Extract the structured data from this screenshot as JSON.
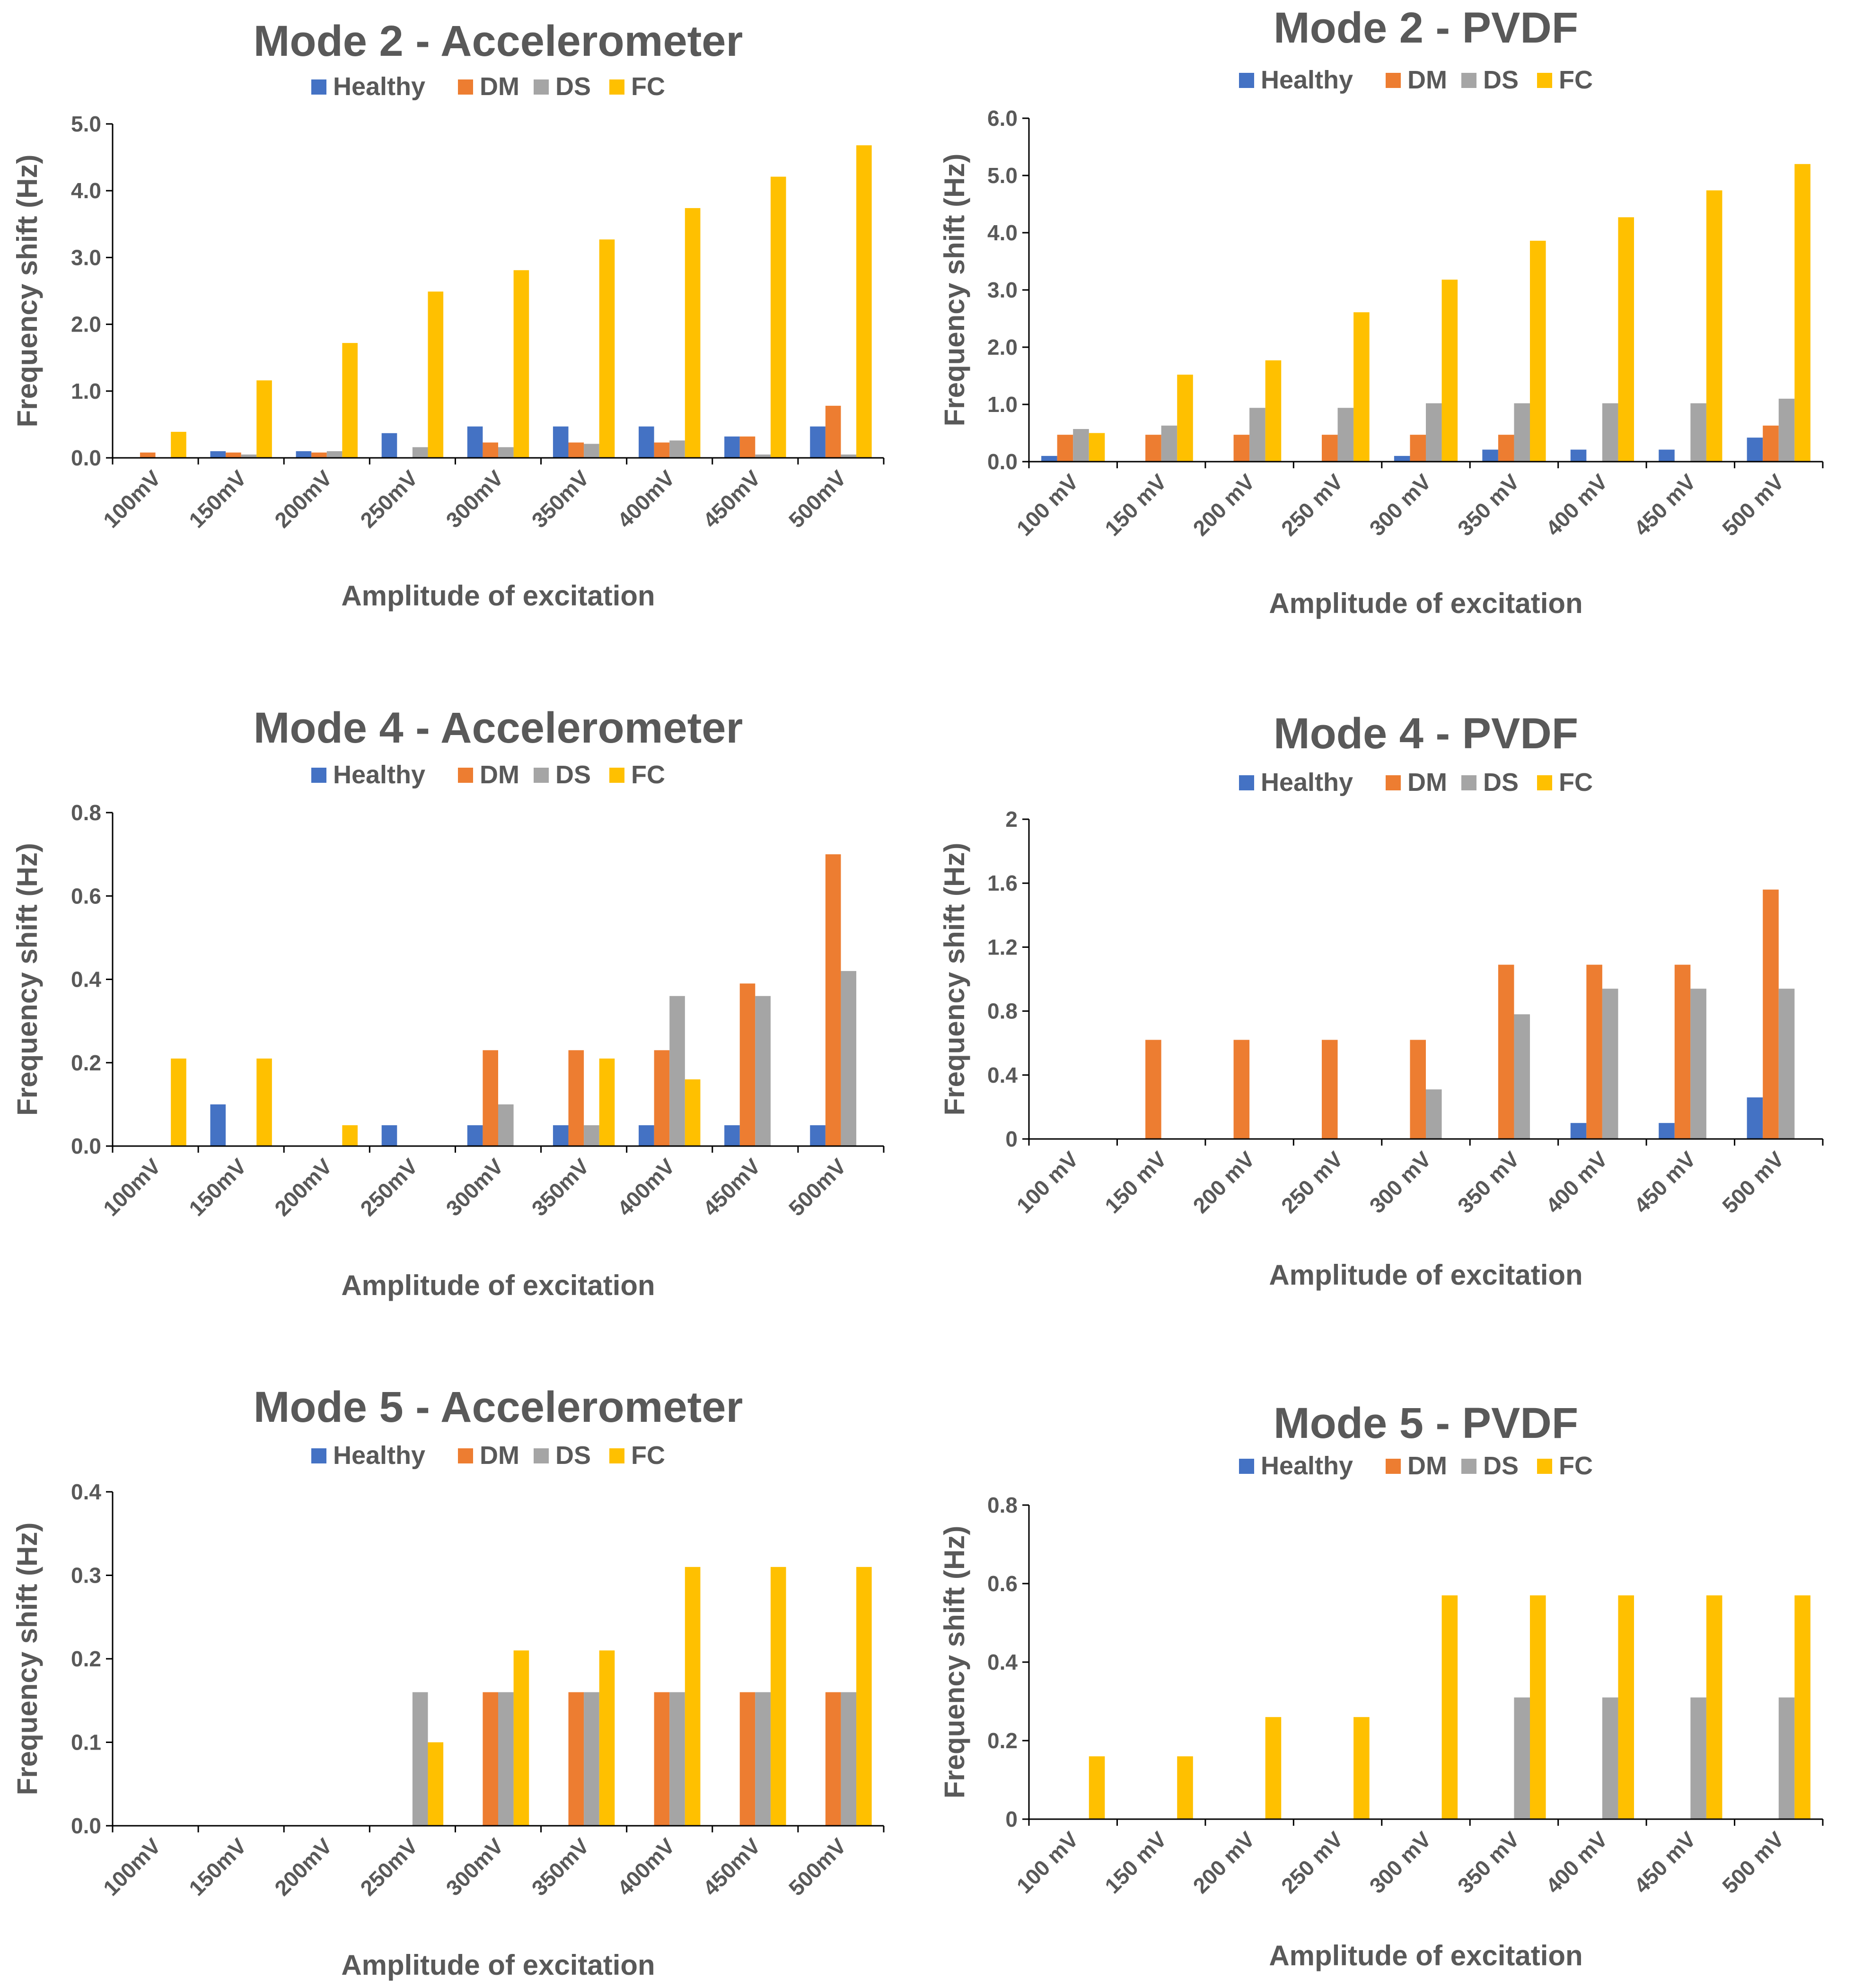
{
  "colors": {
    "Healthy": "#4472C4",
    "DM": "#ED7D31",
    "DS": "#A5A5A5",
    "FC": "#FFC000",
    "text": "#595959",
    "axis": "#000000"
  },
  "chart_data": [
    {
      "type": "bar",
      "title": "Mode 2 - Accelerometer",
      "xlabel": "Amplitude of excitation",
      "ylabel": "Frequency shift (Hz)",
      "ylim": [
        0,
        5
      ],
      "yticks": [
        "0.0",
        "1.0",
        "2.0",
        "3.0",
        "4.0",
        "5.0"
      ],
      "legend": [
        "Healthy",
        "DM",
        "DS",
        "FC"
      ],
      "categories": [
        "100mV",
        "150mV",
        "200mV",
        "250mV",
        "300mV",
        "350mV",
        "400mV",
        "450mV",
        "500mV"
      ],
      "series": [
        {
          "name": "Healthy",
          "values": [
            0,
            0.1,
            0.1,
            0.37,
            0.47,
            0.47,
            0.47,
            0.32,
            0.47
          ]
        },
        {
          "name": "DM",
          "values": [
            0.08,
            0.08,
            0.08,
            0,
            0.23,
            0.23,
            0.23,
            0.32,
            0.78
          ]
        },
        {
          "name": "DS",
          "values": [
            0,
            0.05,
            0.1,
            0.16,
            0.16,
            0.21,
            0.26,
            0.05,
            0.05
          ]
        },
        {
          "name": "FC",
          "values": [
            0.39,
            1.16,
            1.72,
            2.49,
            2.81,
            3.27,
            3.74,
            4.21,
            4.68
          ]
        }
      ]
    },
    {
      "type": "bar",
      "title": "Mode 2 - PVDF",
      "xlabel": "Amplitude of excitation",
      "ylabel": "Frequency shift (Hz)",
      "ylim": [
        0,
        6
      ],
      "yticks": [
        "0.0",
        "1.0",
        "2.0",
        "3.0",
        "4.0",
        "5.0",
        "6.0"
      ],
      "legend": [
        "Healthy",
        "DM",
        "DS",
        "FC"
      ],
      "categories": [
        "100 mV",
        "150 mV",
        "200 mV",
        "250 mV",
        "300 mV",
        "350 mV",
        "400 mV",
        "450 mV",
        "500 mV"
      ],
      "series": [
        {
          "name": "Healthy",
          "values": [
            0.1,
            0,
            0,
            0,
            0.1,
            0.21,
            0.21,
            0.21,
            0.42
          ]
        },
        {
          "name": "DM",
          "values": [
            0.47,
            0.47,
            0.47,
            0.47,
            0.47,
            0.47,
            0,
            0,
            0.63
          ]
        },
        {
          "name": "DS",
          "values": [
            0.57,
            0.63,
            0.94,
            0.94,
            1.02,
            1.02,
            1.02,
            1.02,
            1.1
          ]
        },
        {
          "name": "FC",
          "values": [
            0.5,
            1.52,
            1.77,
            2.61,
            3.18,
            3.86,
            4.27,
            4.74,
            5.2
          ]
        }
      ]
    },
    {
      "type": "bar",
      "title": "Mode 4 - Accelerometer",
      "xlabel": "Amplitude of excitation",
      "ylabel": "Frequency shift (Hz)",
      "ylim": [
        0,
        0.8
      ],
      "yticks": [
        "0.0",
        "0.2",
        "0.4",
        "0.6",
        "0.8"
      ],
      "legend": [
        "Healthy",
        "DM",
        "DS",
        "FC"
      ],
      "categories": [
        "100mV",
        "150mV",
        "200mV",
        "250mV",
        "300mV",
        "350mV",
        "400mV",
        "450mV",
        "500mV"
      ],
      "series": [
        {
          "name": "Healthy",
          "values": [
            0,
            0.1,
            0,
            0.05,
            0.05,
            0.05,
            0.05,
            0.05,
            0.05
          ]
        },
        {
          "name": "DM",
          "values": [
            0,
            0,
            0,
            0,
            0.23,
            0.23,
            0.23,
            0.39,
            0.7
          ]
        },
        {
          "name": "DS",
          "values": [
            0,
            0,
            0,
            0,
            0.1,
            0.05,
            0.36,
            0.36,
            0.42
          ]
        },
        {
          "name": "FC",
          "values": [
            0.21,
            0.21,
            0.05,
            0,
            0,
            0.21,
            0.16,
            0,
            0
          ]
        }
      ]
    },
    {
      "type": "bar",
      "title": "Mode 4 - PVDF",
      "xlabel": "Amplitude of excitation",
      "ylabel": "Frequency shift (Hz)",
      "ylim": [
        0,
        2
      ],
      "yticks": [
        "0",
        "0.4",
        "0.8",
        "1.2",
        "1.6",
        "2"
      ],
      "legend": [
        "Healthy",
        "DM",
        "DS",
        "FC"
      ],
      "categories": [
        "100 mV",
        "150 mV",
        "200 mV",
        "250 mV",
        "300 mV",
        "350 mV",
        "400 mV",
        "450 mV",
        "500 mV"
      ],
      "series": [
        {
          "name": "Healthy",
          "values": [
            0,
            0,
            0,
            0,
            0,
            0,
            0.1,
            0.1,
            0.26
          ]
        },
        {
          "name": "DM",
          "values": [
            0,
            0.62,
            0.62,
            0.62,
            0.62,
            1.09,
            1.09,
            1.09,
            1.56
          ]
        },
        {
          "name": "DS",
          "values": [
            0,
            0,
            0,
            0,
            0.31,
            0.78,
            0.94,
            0.94,
            0.94
          ]
        },
        {
          "name": "FC",
          "values": [
            0,
            0,
            0,
            0,
            0,
            0,
            0,
            0,
            0
          ]
        }
      ]
    },
    {
      "type": "bar",
      "title": "Mode 5 - Accelerometer",
      "xlabel": "Amplitude of excitation",
      "ylabel": "Frequency shift (Hz)",
      "ylim": [
        0,
        0.4
      ],
      "yticks": [
        "0.0",
        "0.1",
        "0.2",
        "0.3",
        "0.4"
      ],
      "legend": [
        "Healthy",
        "DM",
        "DS",
        "FC"
      ],
      "categories": [
        "100mV",
        "150mV",
        "200mV",
        "250mV",
        "300mV",
        "350mV",
        "400mV",
        "450mV",
        "500mV"
      ],
      "series": [
        {
          "name": "Healthy",
          "values": [
            0,
            0,
            0,
            0,
            0,
            0,
            0,
            0,
            0
          ]
        },
        {
          "name": "DM",
          "values": [
            0,
            0,
            0,
            0,
            0.16,
            0.16,
            0.16,
            0.16,
            0.16
          ]
        },
        {
          "name": "DS",
          "values": [
            0,
            0,
            0,
            0.16,
            0.16,
            0.16,
            0.16,
            0.16,
            0.16
          ]
        },
        {
          "name": "FC",
          "values": [
            0,
            0,
            0,
            0.1,
            0.21,
            0.21,
            0.31,
            0.31,
            0.31
          ]
        }
      ]
    },
    {
      "type": "bar",
      "title": "Mode 5 - PVDF",
      "xlabel": "Amplitude of excitation",
      "ylabel": "Frequency shift (Hz)",
      "ylim": [
        0,
        0.8
      ],
      "yticks": [
        "0",
        "0.2",
        "0.4",
        "0.6",
        "0.8"
      ],
      "legend": [
        "Healthy",
        "DM",
        "DS",
        "FC"
      ],
      "categories": [
        "100 mV",
        "150 mV",
        "200 mV",
        "250 mV",
        "300 mV",
        "350 mV",
        "400 mV",
        "450 mV",
        "500 mV"
      ],
      "series": [
        {
          "name": "Healthy",
          "values": [
            0,
            0,
            0,
            0,
            0,
            0,
            0,
            0,
            0
          ]
        },
        {
          "name": "DM",
          "values": [
            0,
            0,
            0,
            0,
            0,
            0,
            0,
            0,
            0
          ]
        },
        {
          "name": "DS",
          "values": [
            0,
            0,
            0,
            0,
            0,
            0.31,
            0.31,
            0.31,
            0.31
          ]
        },
        {
          "name": "FC",
          "values": [
            0.16,
            0.16,
            0.26,
            0.26,
            0.57,
            0.57,
            0.57,
            0.57,
            0.57
          ]
        }
      ]
    }
  ]
}
